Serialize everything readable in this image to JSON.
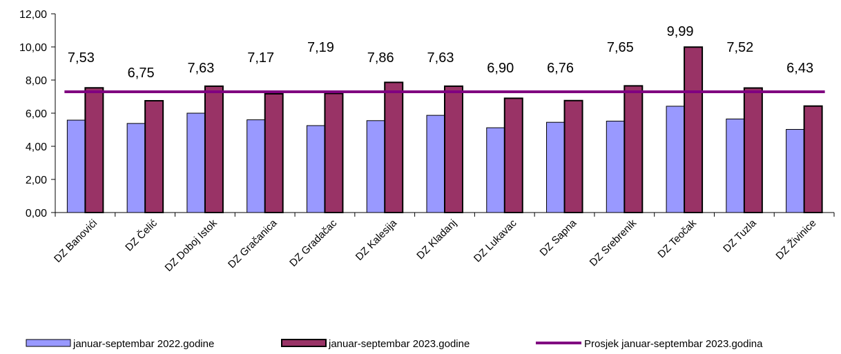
{
  "chart_data": {
    "type": "bar",
    "categories": [
      "DZ Banovići",
      "DZ Čelić",
      "DZ Doboj Istok",
      "DZ Gračanica",
      "DZ Gradačac",
      "DZ Kalesija",
      "DZ  Kladanj",
      "DZ Lukavac",
      "DZ Sapna",
      "DZ Srebrenik",
      "DZ Teočak",
      "DZ Tuzla",
      "DZ Živinice"
    ],
    "series": [
      {
        "name": "januar-septembar 2022.godine",
        "type": "bar",
        "color": "#9999FF",
        "values": [
          5.58,
          5.38,
          6.0,
          5.6,
          5.25,
          5.55,
          5.87,
          5.12,
          5.45,
          5.52,
          6.42,
          5.65,
          5.02
        ]
      },
      {
        "name": "januar-septembar 2023.godine",
        "type": "bar",
        "color": "#993366",
        "values": [
          7.53,
          6.75,
          7.63,
          7.17,
          7.19,
          7.86,
          7.63,
          6.9,
          6.76,
          7.65,
          9.99,
          7.52,
          6.43
        ],
        "data_labels": [
          "7,53",
          "6,75",
          "7,63",
          "7,17",
          "7,19",
          "7,86",
          "7,63",
          "6,90",
          "6,76",
          "7,65",
          "9,99",
          "7,52",
          "6,43"
        ]
      },
      {
        "name": "Prosjek januar-septembar  2023.godina",
        "type": "line",
        "color": "#800080",
        "value": 7.29
      }
    ],
    "ylim": [
      0,
      12
    ],
    "yticks": [
      0,
      2,
      4,
      6,
      8,
      10,
      12
    ],
    "ytick_labels": [
      "0,00",
      "2,00",
      "4,00",
      "6,00",
      "8,00",
      "10,00",
      "12,00"
    ],
    "grid": false,
    "legend_position": "bottom"
  }
}
